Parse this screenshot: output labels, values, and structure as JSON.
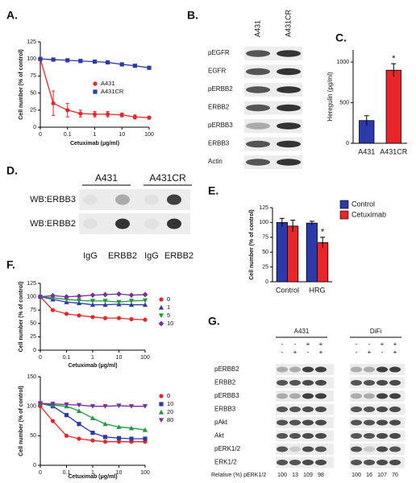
{
  "chart_data": [
    {
      "label": "A.",
      "type": "line",
      "xlog": true,
      "x": [
        0,
        0.03,
        0.1,
        0.3,
        1,
        3,
        10,
        30,
        100
      ],
      "xlim": [
        0,
        100
      ],
      "xticks": [
        0,
        0.1,
        1,
        10,
        100
      ],
      "ylim": [
        0,
        125
      ],
      "yticks": [
        0,
        25,
        50,
        75,
        100,
        125
      ],
      "xlabel": "Cetuximab (μg/ml)",
      "ylabel": "Cell number (% of control)",
      "series": [
        {
          "name": "A431",
          "color": "#e8262a",
          "marker": "circle",
          "values": [
            100,
            35,
            25,
            20,
            19,
            19,
            18,
            15,
            14
          ],
          "errors": [
            0,
            18,
            10,
            5,
            4,
            4,
            3,
            3,
            2
          ]
        },
        {
          "name": "A431CR",
          "color": "#2b3aa8",
          "marker": "square",
          "values": [
            100,
            99,
            98,
            97,
            96,
            95,
            92,
            90,
            87
          ],
          "errors": [
            0,
            2,
            2,
            2,
            2,
            2,
            2,
            2,
            2
          ]
        }
      ]
    },
    {
      "label": "C.",
      "type": "bar",
      "categories": [
        "A431",
        "A431CR"
      ],
      "values": [
        280,
        900
      ],
      "errors": [
        60,
        80
      ],
      "colors": [
        "#2b3aa8",
        "#e8262a"
      ],
      "ylim": [
        0,
        1150
      ],
      "yticks": [
        0,
        500,
        1000
      ],
      "ylabel": "Heregulin (pg/ml)",
      "annotations": [
        "*"
      ]
    },
    {
      "label": "E.",
      "type": "bar",
      "categories": [
        "Control",
        "HRG"
      ],
      "series": [
        {
          "name": "Control",
          "color": "#2b3aa8",
          "values": [
            100,
            99
          ],
          "errors": [
            7,
            3
          ]
        },
        {
          "name": "Cetuximab",
          "color": "#e8262a",
          "values": [
            94,
            66
          ],
          "errors": [
            10,
            9
          ]
        }
      ],
      "ylim": [
        0,
        125
      ],
      "yticks": [
        0,
        25,
        50,
        75,
        100,
        125
      ],
      "ylabel": "Cell number (% of control)",
      "annotations": [
        "*"
      ],
      "legend": "right"
    },
    {
      "label": "F.",
      "type": "line",
      "xlog": true,
      "x": [
        0,
        0.03,
        0.1,
        0.3,
        1,
        3,
        10,
        30,
        100
      ],
      "xlim": [
        0,
        100
      ],
      "xticks": [
        0,
        0.1,
        1,
        10,
        100
      ],
      "ylim": [
        0,
        125
      ],
      "yticks": [
        0,
        25,
        50,
        75,
        100,
        125
      ],
      "xlabel": "Cetuximab (μg/ml)",
      "ylabel": "Cell number (% of control)",
      "series": [
        {
          "name": "0",
          "color": "#e8262a",
          "marker": "circle",
          "values": [
            100,
            75,
            68,
            65,
            62,
            60,
            60,
            58,
            57
          ]
        },
        {
          "name": "1",
          "color": "#2b3aa8",
          "marker": "triangle-up",
          "values": [
            100,
            95,
            90,
            88,
            85,
            85,
            86,
            85,
            85
          ]
        },
        {
          "name": "5",
          "color": "#1d9a3a",
          "marker": "triangle-down",
          "values": [
            100,
            98,
            95,
            93,
            92,
            92,
            90,
            92,
            93
          ]
        },
        {
          "name": "10",
          "color": "#7b2f9e",
          "marker": "diamond",
          "values": [
            100,
            102,
            100,
            101,
            103,
            104,
            105,
            103,
            104
          ]
        }
      ]
    },
    {
      "type": "line",
      "xlog": true,
      "x": [
        0,
        0.03,
        0.1,
        0.3,
        1,
        3,
        10,
        30,
        100
      ],
      "xlim": [
        0,
        100
      ],
      "xticks": [
        0,
        0.1,
        1,
        10,
        100
      ],
      "ylim": [
        0,
        150
      ],
      "yticks": [
        0,
        50,
        100,
        150
      ],
      "xlabel": "Cetuximab (μg/ml)",
      "ylabel": "Cell number (% of control)",
      "series": [
        {
          "name": "0",
          "color": "#e8262a",
          "marker": "circle",
          "values": [
            100,
            75,
            50,
            45,
            42,
            40,
            40,
            40,
            40
          ]
        },
        {
          "name": "10",
          "color": "#2b3aa8",
          "marker": "square",
          "values": [
            105,
            100,
            85,
            70,
            55,
            48,
            46,
            45,
            45
          ]
        },
        {
          "name": "20",
          "color": "#1d9a3a",
          "marker": "triangle-up",
          "values": [
            105,
            102,
            100,
            92,
            80,
            70,
            65,
            63,
            60
          ]
        },
        {
          "name": "80",
          "color": "#7b2f9e",
          "marker": "triangle-down",
          "values": [
            105,
            104,
            103,
            102,
            100,
            100,
            101,
            100,
            100
          ]
        }
      ]
    }
  ],
  "blot_b": {
    "label": "B.",
    "columns": [
      "A431",
      "A431CR"
    ],
    "rows": [
      "pEGFR",
      "EGFR",
      "pERBB2",
      "ERBB2",
      "pERBB3",
      "ERBB3",
      "Actin"
    ]
  },
  "blot_d": {
    "label": "D.",
    "groups": [
      "A431",
      "A431CR"
    ],
    "rows": [
      "WB:ERBB3",
      "WB:ERBB2"
    ],
    "lanes": [
      "IgG",
      "ERBB2",
      "IgG",
      "ERBB2"
    ]
  },
  "blot_g": {
    "label": "G.",
    "groups": [
      "A431",
      "DiFi"
    ],
    "treatment_rows": [
      [
        "-",
        "-",
        "+",
        "+",
        "-",
        "-",
        "+",
        "+"
      ],
      [
        "-",
        "+",
        "-",
        "+",
        "-",
        "+",
        "-",
        "+"
      ]
    ],
    "rows": [
      "pERBB2",
      "ERBB2",
      "pERBB3",
      "ERBB3",
      "pAkt",
      "Akt",
      "pERK1/2",
      "ERK1/2"
    ],
    "quant_label": "Relative (%) pERK1/2",
    "quant_values": [
      100,
      13,
      109,
      98,
      100,
      16,
      107,
      70
    ]
  }
}
